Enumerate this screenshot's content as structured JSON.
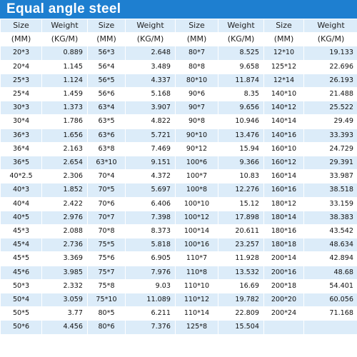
{
  "title": "Equal angle steel",
  "header": {
    "size_label": "Size",
    "weight_label": "Weight",
    "size_unit": "(MM)",
    "weight_unit": "(KG/M)"
  },
  "rows": [
    [
      "20*3",
      "0.889",
      "56*3",
      "2.648",
      "80*7",
      "8.525",
      "12*10",
      "19.133"
    ],
    [
      "20*4",
      "1.145",
      "56*4",
      "3.489",
      "80*8",
      "9.658",
      "125*12",
      "22.696"
    ],
    [
      "25*3",
      "1.124",
      "56*5",
      "4.337",
      "80*10",
      "11.874",
      "12*14",
      "26.193"
    ],
    [
      "25*4",
      "1.459",
      "56*6",
      "5.168",
      "90*6",
      "8.35",
      "140*10",
      "21.488"
    ],
    [
      "30*3",
      "1.373",
      "63*4",
      "3.907",
      "90*7",
      "9.656",
      "140*12",
      "25.522"
    ],
    [
      "30*4",
      "1.786",
      "63*5",
      "4.822",
      "90*8",
      "10.946",
      "140*14",
      "29.49"
    ],
    [
      "36*3",
      "1.656",
      "63*6",
      "5.721",
      "90*10",
      "13.476",
      "140*16",
      "33.393"
    ],
    [
      "36*4",
      "2.163",
      "63*8",
      "7.469",
      "90*12",
      "15.94",
      "160*10",
      "24.729"
    ],
    [
      "36*5",
      "2.654",
      "63*10",
      "9.151",
      "100*6",
      "9.366",
      "160*12",
      "29.391"
    ],
    [
      "40*2.5",
      "2.306",
      "70*4",
      "4.372",
      "100*7",
      "10.83",
      "160*14",
      "33.987"
    ],
    [
      "40*3",
      "1.852",
      "70*5",
      "5.697",
      "100*8",
      "12.276",
      "160*16",
      "38.518"
    ],
    [
      "40*4",
      "2.422",
      "70*6",
      "6.406",
      "100*10",
      "15.12",
      "180*12",
      "33.159"
    ],
    [
      "40*5",
      "2.976",
      "70*7",
      "7.398",
      "100*12",
      "17.898",
      "180*14",
      "38.383"
    ],
    [
      "45*3",
      "2.088",
      "70*8",
      "8.373",
      "100*14",
      "20.611",
      "180*16",
      "43.542"
    ],
    [
      "45*4",
      "2.736",
      "75*5",
      "5.818",
      "100*16",
      "23.257",
      "180*18",
      "48.634"
    ],
    [
      "45*5",
      "3.369",
      "75*6",
      "6.905",
      "110*7",
      "11.928",
      "200*14",
      "42.894"
    ],
    [
      "45*6",
      "3.985",
      "75*7",
      "7.976",
      "110*8",
      "13.532",
      "200*16",
      "48.68"
    ],
    [
      "50*3",
      "2.332",
      "75*8",
      "9.03",
      "110*10",
      "16.69",
      "200*18",
      "54.401"
    ],
    [
      "50*4",
      "3.059",
      "75*10",
      "11.089",
      "110*12",
      "19.782",
      "200*20",
      "60.056"
    ],
    [
      "50*5",
      "3.77",
      "80*5",
      "6.211",
      "110*14",
      "22.809",
      "200*24",
      "71.168"
    ],
    [
      "50*6",
      "4.456",
      "80*6",
      "7.376",
      "125*8",
      "15.504",
      "",
      ""
    ]
  ]
}
